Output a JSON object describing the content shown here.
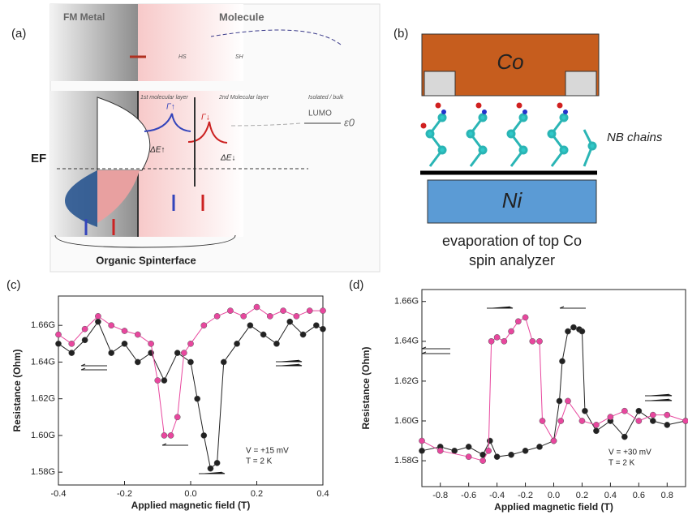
{
  "panel_a": {
    "label": "(a)",
    "fm_metal": "FM Metal",
    "molecule": "Molecule",
    "layer1": "1st molecular layer",
    "layer2": "2nd Molecular layer",
    "bulk": "Isolated / bulk",
    "lumo": "LUMO",
    "epsilon": "ε0",
    "gamma_up": "Γ↑",
    "gamma_down": "Γ↓",
    "fermi": "EF",
    "delta_up": "ΔE↑",
    "delta_down": "ΔE↓",
    "thiol_left": "HS",
    "thiol_right": "SH",
    "caption": "Organic Spinterface"
  },
  "panel_b": {
    "label": "(b)",
    "top": "Co",
    "bottom": "Ni",
    "chains": "NB chains",
    "caption_1": "evaporation of top Co",
    "caption_2": "spin analyzer"
  },
  "chart_data": [
    {
      "type": "scatter",
      "label": "(c)",
      "x_label": "Applied magnetic field (T)",
      "y_label": "Resistance (Ohm)",
      "xlim": [
        -0.4,
        0.4
      ],
      "ylim": [
        1573000000,
        1676000000
      ],
      "xticks": [
        -0.4,
        -0.2,
        {
          "value": 0,
          "label": "0.0"
        },
        0.2,
        0.4
      ],
      "yticks": [
        {
          "value": 1580000000,
          "label": "1.58G"
        },
        {
          "value": 1600000000,
          "label": "1.60G"
        },
        {
          "value": 1620000000,
          "label": "1.62G"
        },
        {
          "value": 1640000000,
          "label": "1.64G"
        },
        {
          "value": 1660000000,
          "label": "1.66G"
        }
      ],
      "annotations": [
        "V = +15 mV",
        "T = 2 K"
      ],
      "series": [
        {
          "color": "#222222",
          "x": [
            -0.4,
            -0.36,
            -0.32,
            -0.28,
            -0.24,
            -0.2,
            -0.16,
            -0.12,
            -0.08,
            -0.04,
            0,
            0.02,
            0.04,
            0.06,
            0.08,
            0.1,
            0.14,
            0.18,
            0.22,
            0.26,
            0.3,
            0.34,
            0.38,
            0.4
          ],
          "values": [
            1650000000,
            1645000000,
            1652000000,
            1662000000,
            1645000000,
            1650000000,
            1640000000,
            1645000000,
            1630000000,
            1645000000,
            1640000000,
            1620000000,
            1600000000,
            1582000000,
            1585000000,
            1640000000,
            1650000000,
            1660000000,
            1655000000,
            1650000000,
            1662000000,
            1655000000,
            1660000000,
            1658000000
          ]
        },
        {
          "color": "#e8479e",
          "x": [
            -0.4,
            -0.36,
            -0.32,
            -0.28,
            -0.24,
            -0.2,
            -0.16,
            -0.12,
            -0.1,
            -0.08,
            -0.06,
            -0.04,
            -0.02,
            0,
            0.04,
            0.08,
            0.12,
            0.16,
            0.2,
            0.24,
            0.28,
            0.32,
            0.36,
            0.4
          ],
          "values": [
            1655000000,
            1650000000,
            1658000000,
            1665000000,
            1660000000,
            1657000000,
            1655000000,
            1650000000,
            1630000000,
            1600000000,
            1600000000,
            1610000000,
            1645000000,
            1650000000,
            1660000000,
            1665000000,
            1668000000,
            1665000000,
            1670000000,
            1665000000,
            1668000000,
            1665000000,
            1668000000,
            1668000000
          ]
        }
      ]
    },
    {
      "type": "scatter",
      "label": "(d)",
      "x_label": "Applied magnetic field (T)",
      "y_label": "Resistance (Ohm)",
      "xlim": [
        -0.93,
        0.93
      ],
      "ylim": [
        1567000000,
        1666000000
      ],
      "xticks": [
        -0.8,
        -0.6,
        -0.4,
        -0.2,
        {
          "value": 0,
          "label": "0.0"
        },
        0.2,
        0.4,
        0.6,
        0.8
      ],
      "yticks": [
        {
          "value": 1580000000,
          "label": "1.58G"
        },
        {
          "value": 1600000000,
          "label": "1.60G"
        },
        {
          "value": 1620000000,
          "label": "1.62G"
        },
        {
          "value": 1640000000,
          "label": "1.64G"
        },
        {
          "value": 1660000000,
          "label": "1.66G"
        }
      ],
      "annotations": [
        "V = +30 mV",
        "T = 2 K"
      ],
      "series": [
        {
          "color": "#222222",
          "x": [
            -0.93,
            -0.8,
            -0.7,
            -0.6,
            -0.5,
            -0.45,
            -0.4,
            -0.3,
            -0.2,
            -0.1,
            0,
            0.04,
            0.06,
            0.1,
            0.14,
            0.18,
            0.2,
            0.22,
            0.3,
            0.4,
            0.5,
            0.6,
            0.7,
            0.8,
            0.93
          ],
          "values": [
            1585000000,
            1587000000,
            1585000000,
            1587000000,
            1583000000,
            1590000000,
            1582000000,
            1583000000,
            1585000000,
            1587000000,
            1590000000,
            1610000000,
            1630000000,
            1645000000,
            1647000000,
            1646000000,
            1645000000,
            1605000000,
            1595000000,
            1600000000,
            1592000000,
            1605000000,
            1600000000,
            1598000000,
            1600000000
          ]
        },
        {
          "color": "#e8479e",
          "x": [
            -0.93,
            -0.8,
            -0.6,
            -0.5,
            -0.46,
            -0.44,
            -0.4,
            -0.35,
            -0.3,
            -0.25,
            -0.2,
            -0.15,
            -0.1,
            -0.08,
            0,
            0.05,
            0.1,
            0.2,
            0.3,
            0.4,
            0.5,
            0.6,
            0.7,
            0.8,
            0.93
          ],
          "values": [
            1590000000,
            1585000000,
            1582000000,
            1580000000,
            1585000000,
            1640000000,
            1642000000,
            1640000000,
            1645000000,
            1650000000,
            1652000000,
            1640000000,
            1640000000,
            1600000000,
            1590000000,
            1600000000,
            1610000000,
            1600000000,
            1598000000,
            1602000000,
            1605000000,
            1600000000,
            1603000000,
            1603000000,
            1600000000
          ]
        }
      ]
    }
  ]
}
